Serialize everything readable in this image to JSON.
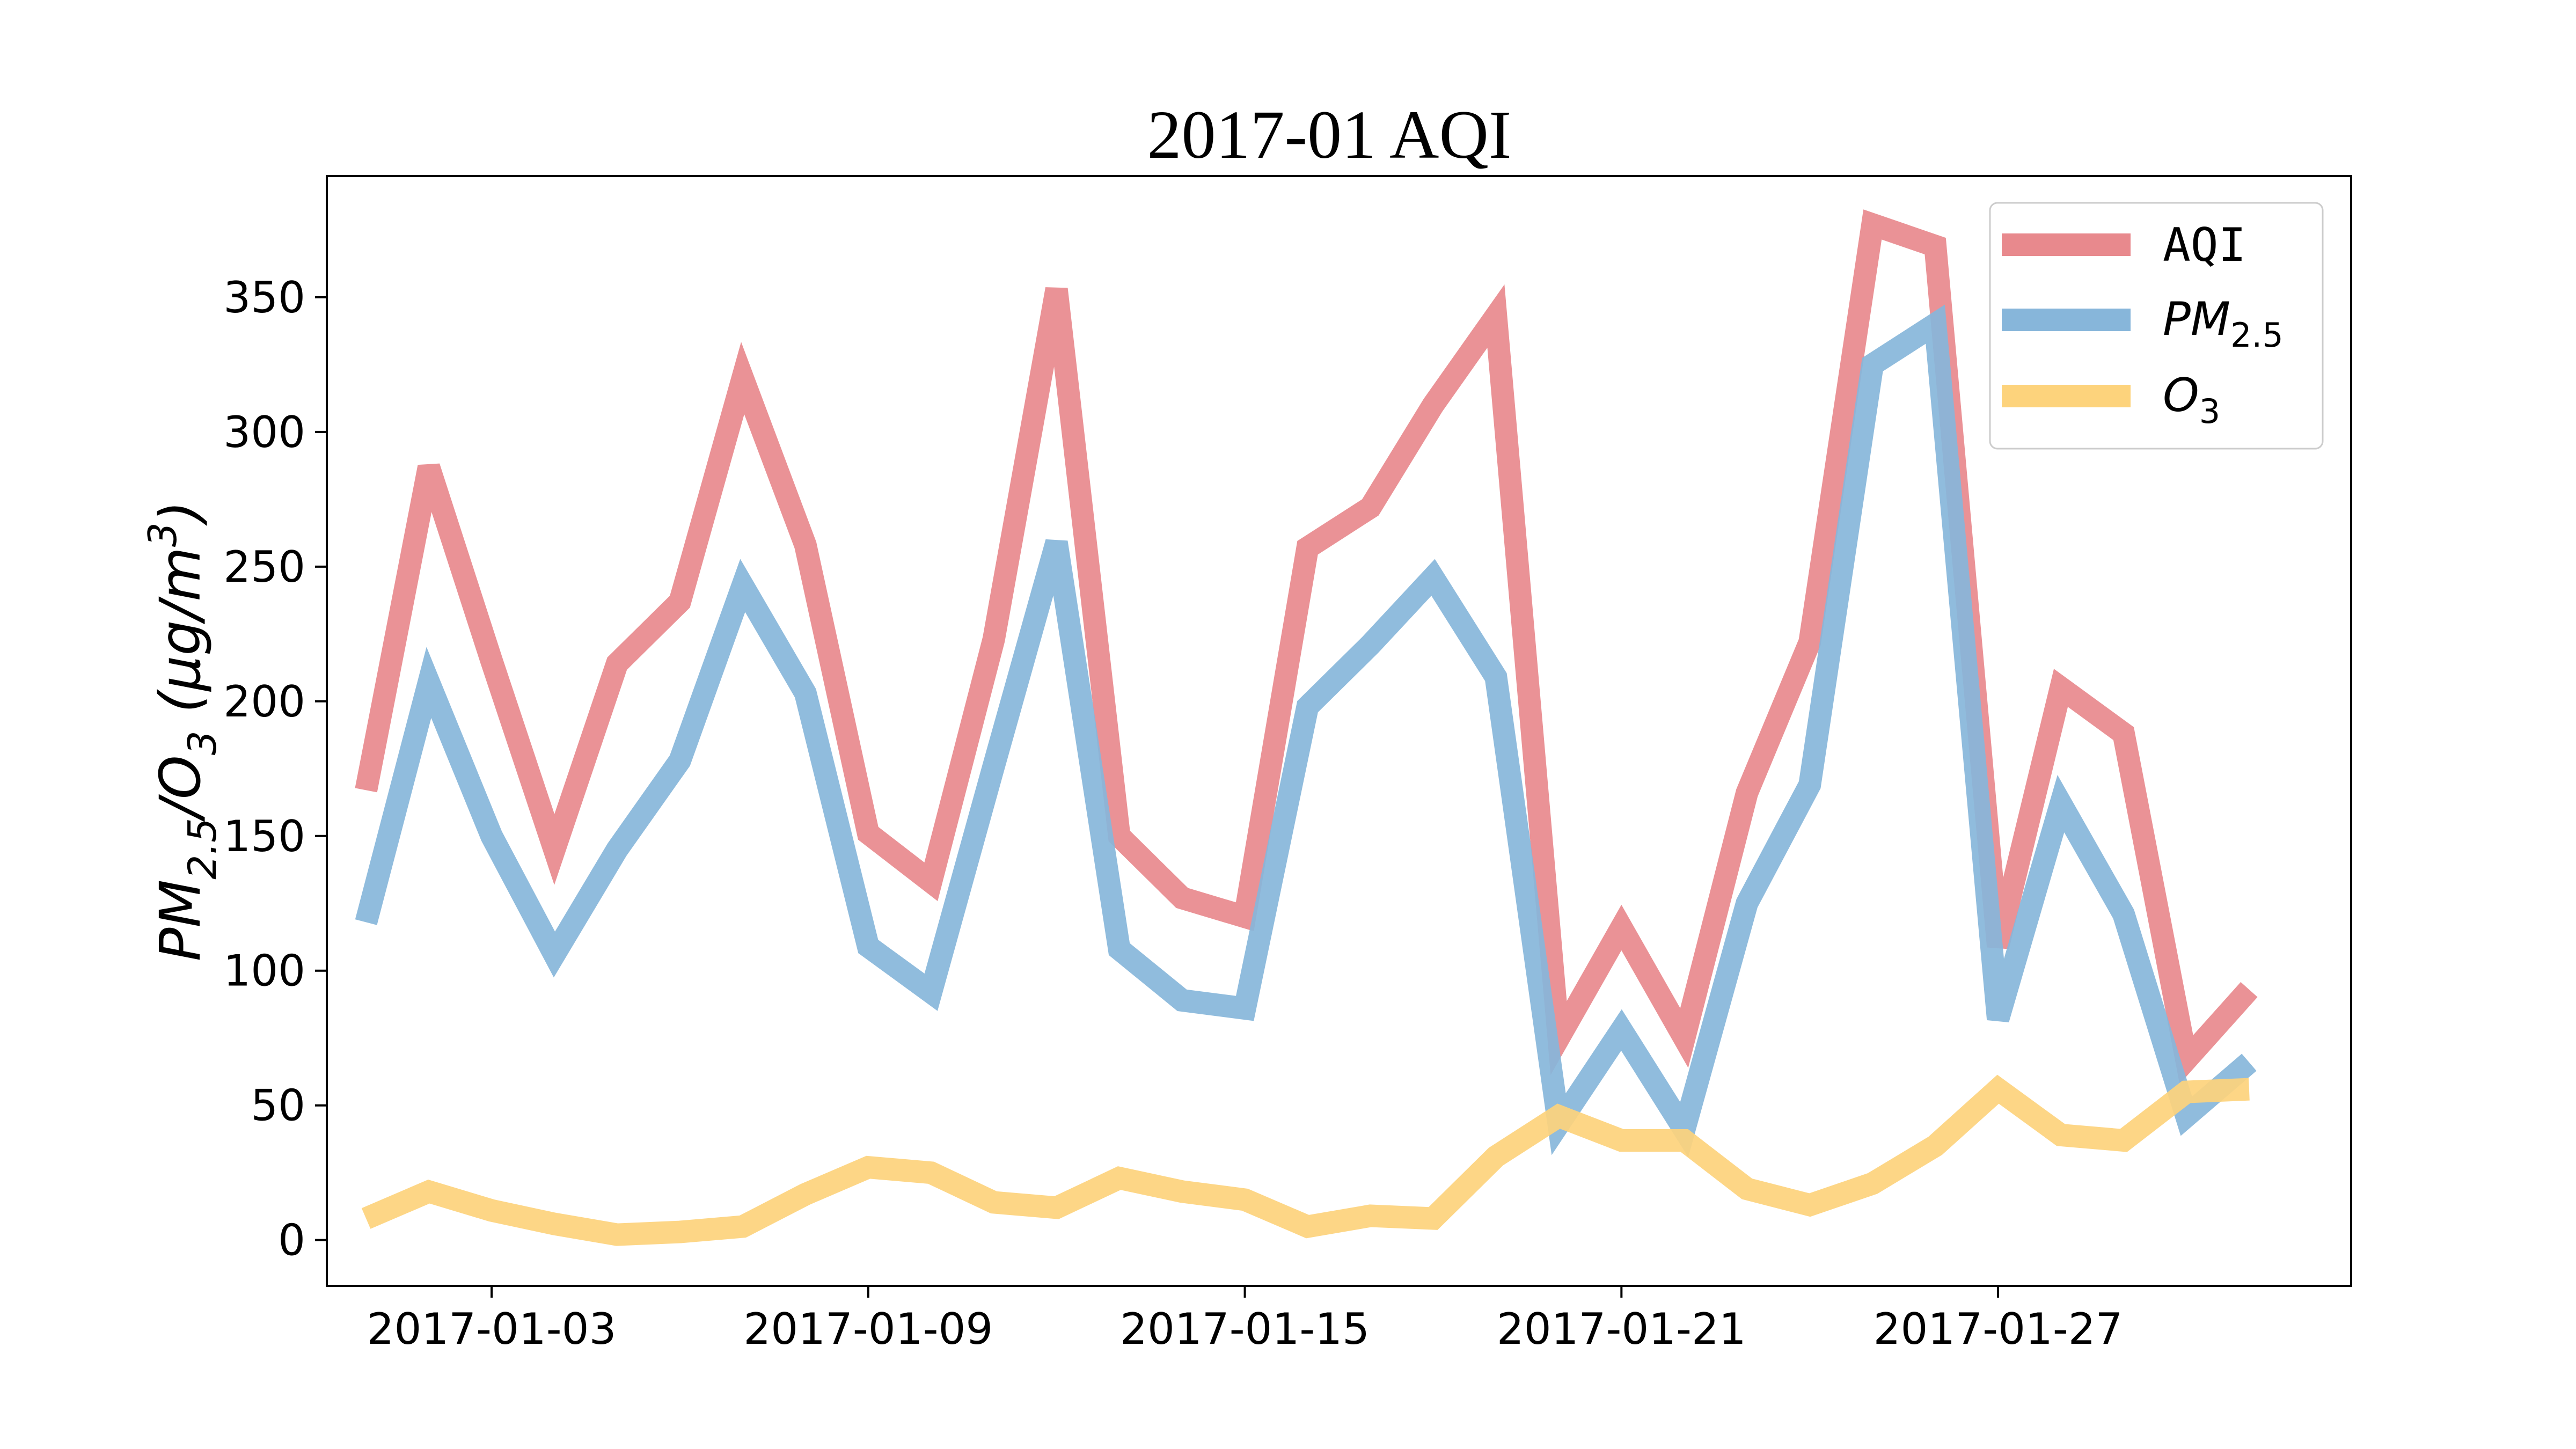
{
  "chart_data": {
    "type": "line",
    "title": "2017-01 AQI",
    "ylabel": {
      "main": "PM",
      "sub1": "2.5",
      "slash": "/O",
      "sub2": "3",
      "unit_open": " (μg/m",
      "sup": "3",
      "unit_close": ")"
    },
    "xlabel": "",
    "x": [
      "2017-01-01",
      "2017-01-02",
      "2017-01-03",
      "2017-01-04",
      "2017-01-05",
      "2017-01-06",
      "2017-01-07",
      "2017-01-08",
      "2017-01-09",
      "2017-01-10",
      "2017-01-11",
      "2017-01-12",
      "2017-01-13",
      "2017-01-14",
      "2017-01-15",
      "2017-01-16",
      "2017-01-17",
      "2017-01-18",
      "2017-01-19",
      "2017-01-20",
      "2017-01-21",
      "2017-01-22",
      "2017-01-23",
      "2017-01-24",
      "2017-01-25",
      "2017-01-26",
      "2017-01-27",
      "2017-01-28",
      "2017-01-29",
      "2017-01-30",
      "2017-01-31"
    ],
    "xticks": [
      "2017-01-03",
      "2017-01-09",
      "2017-01-15",
      "2017-01-21",
      "2017-01-27"
    ],
    "yticks": [
      0,
      50,
      100,
      150,
      200,
      250,
      300,
      350
    ],
    "ylim": [
      -17,
      395
    ],
    "xlim": [
      "2016-12-31T09:00",
      "2017-02-01T15:00"
    ],
    "legend_position": "upper-right",
    "grid": false,
    "series": [
      {
        "name": "AQI",
        "color": "#e8898d",
        "values": [
          167,
          287,
          215,
          145,
          214,
          237,
          320,
          258,
          151,
          133,
          223,
          353,
          150,
          127,
          120,
          257,
          272,
          310,
          343,
          75,
          116,
          75,
          166,
          222,
          377,
          369,
          109,
          205,
          188,
          67,
          93
        ]
      },
      {
        "name": "PM",
        "name_sub": "2.5",
        "color": "#87b6da",
        "values": [
          118,
          207,
          150,
          106,
          145,
          178,
          243,
          203,
          109,
          92,
          176,
          259,
          108,
          89,
          86,
          198,
          221,
          246,
          209,
          43,
          78,
          41,
          125,
          169,
          325,
          340,
          82,
          162,
          121,
          46,
          66
        ]
      },
      {
        "name": "O",
        "name_sub": "3",
        "color": "#fdd37c",
        "values": [
          8,
          18,
          11,
          6,
          2,
          3,
          5,
          17,
          27,
          25,
          14,
          12,
          23,
          18,
          15,
          5,
          9,
          8,
          31,
          46,
          37,
          37,
          19,
          13,
          21,
          35,
          56,
          39,
          37,
          55,
          56
        ]
      }
    ]
  }
}
